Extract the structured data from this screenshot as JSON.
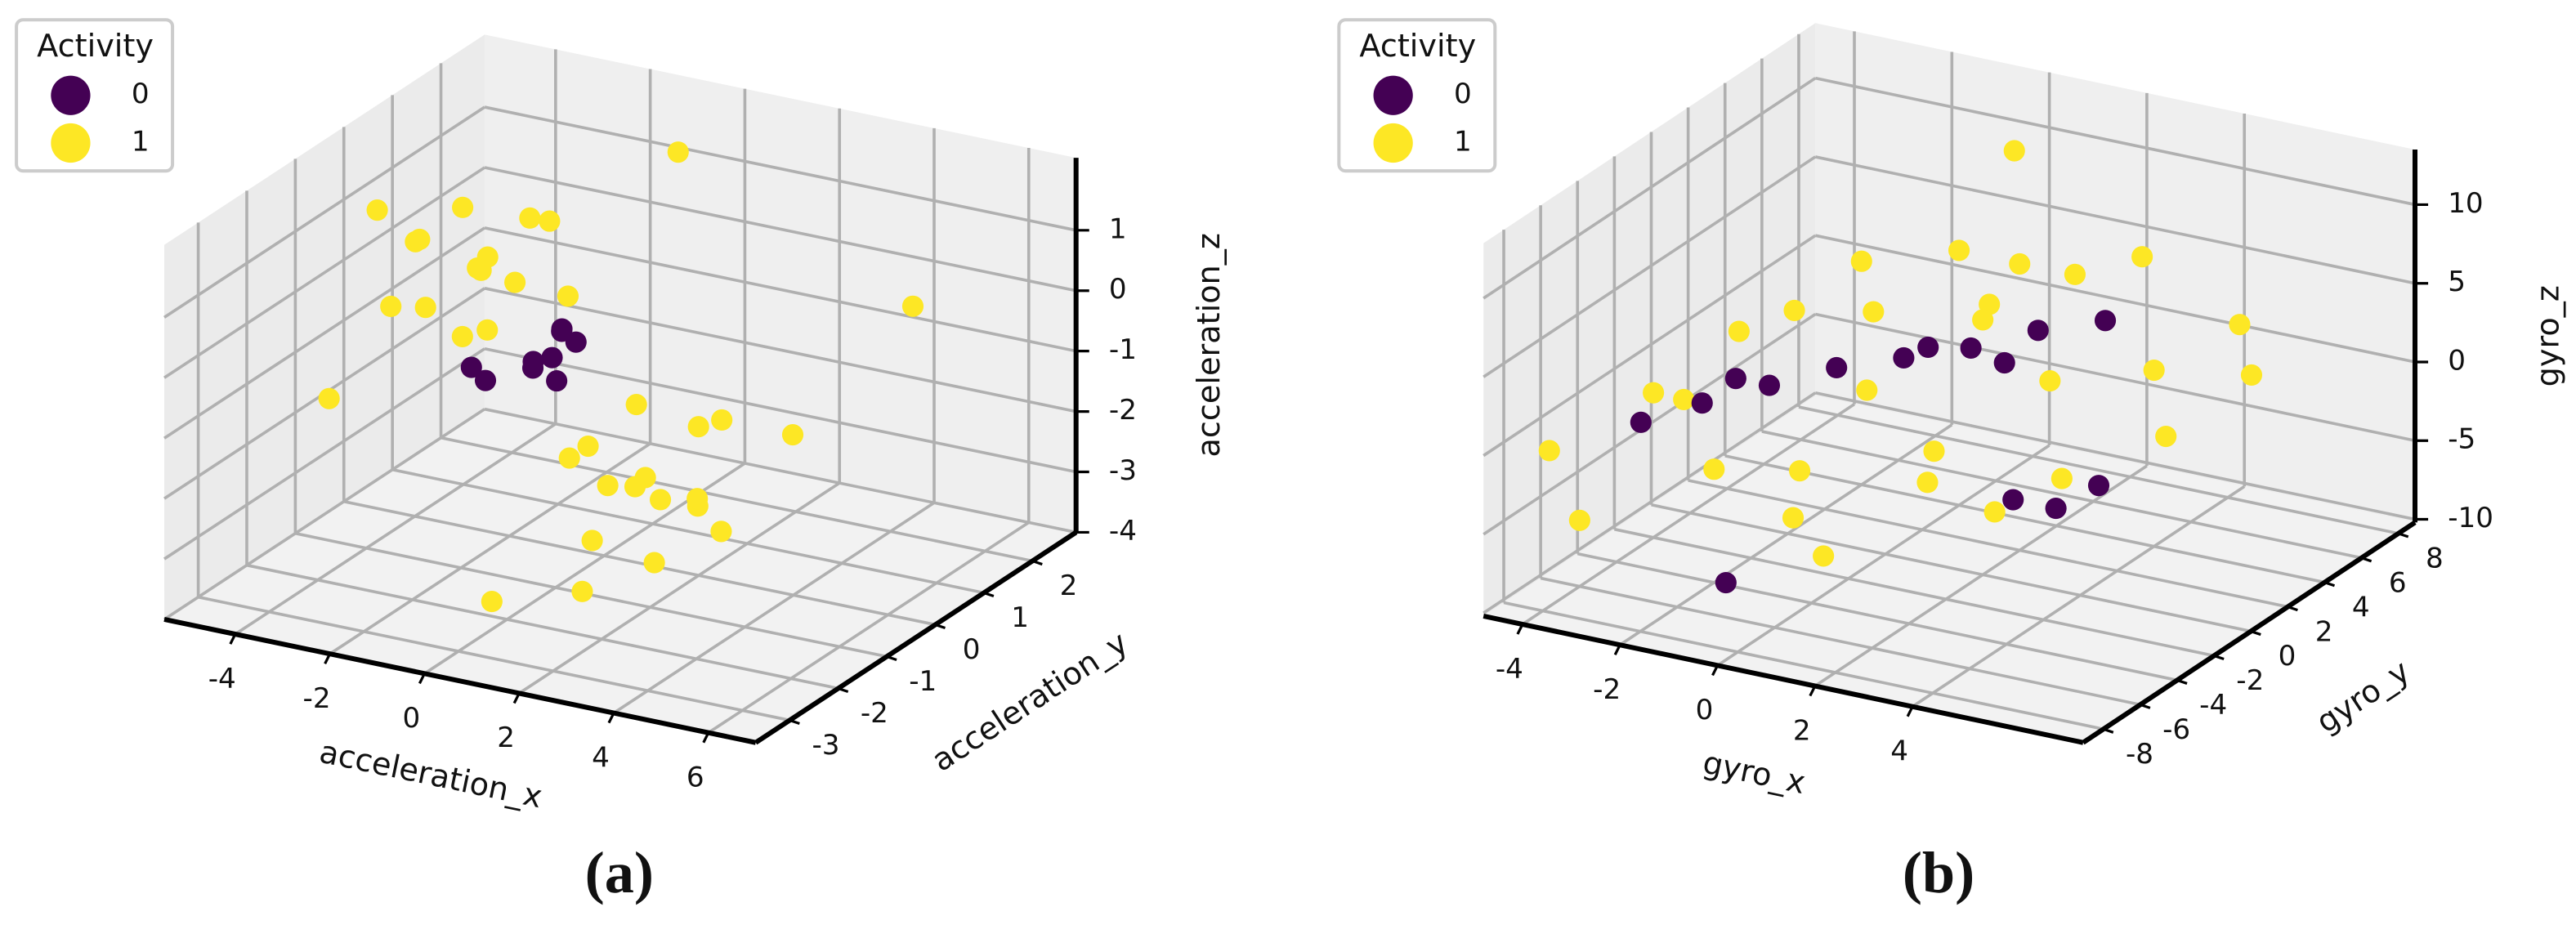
{
  "chart_data": [
    {
      "type": "scatter3d",
      "caption": "(a)",
      "xlabel": "acceleration_x",
      "ylabel": "acceleration_y",
      "zlabel": "acceleration_z",
      "xlim": [
        -5.5,
        7
      ],
      "ylim": [
        -3.7,
        2.9
      ],
      "zlim": [
        -4,
        2.2
      ],
      "xticks": [
        -4,
        -2,
        0,
        2,
        4,
        6
      ],
      "yticks": [
        -3,
        -2,
        -1,
        0,
        1,
        2
      ],
      "zticks": [
        -4,
        -3,
        -2,
        -1,
        0,
        1
      ],
      "grid": true,
      "legend": {
        "title": "Activity",
        "position": "upper left"
      },
      "series": [
        {
          "name": "0",
          "color": "#440154",
          "x": [
            -1.1,
            -0.8,
            -1.3,
            -0.9,
            -1.2,
            -1.6,
            -2.2,
            -2.6,
            -1.0
          ],
          "y": [
            0,
            0.2,
            -0.2,
            -0.1,
            0.3,
            0.1,
            -0.3,
            -0.2,
            0.1
          ],
          "z": [
            -0.9,
            -0.7,
            -1.0,
            -1.2,
            -0.6,
            -1.1,
            -1.3,
            -1.2,
            -0.5
          ]
        },
        {
          "name": "1",
          "color": "#fde725",
          "x": [
            -3.6,
            -4.5,
            -2.8,
            -3.2,
            -4.0,
            -2.5,
            -3.9,
            -3.0,
            -4.8,
            -2.2,
            -3.4,
            -4.2,
            -2.6,
            -3.7,
            -5.0,
            2.0,
            1.2,
            2.8,
            1.6,
            2.5,
            3.2,
            1.0,
            2.2,
            1.8,
            3.0,
            0.6,
            2.6,
            1.4,
            3.5,
            2.0,
            4.5,
            5.5,
            -5.3,
            0.5,
            -1.0
          ],
          "y": [
            0.9,
            0.5,
            1.2,
            0.2,
            1.5,
            0.6,
            0.0,
            1.8,
            1.0,
            1.4,
            0.4,
            -0.3,
            0.0,
            1.2,
            0.2,
            -1.1,
            -1.5,
            -0.8,
            -0.4,
            -1.8,
            -1.2,
            -0.9,
            -0.2,
            -2.0,
            -0.5,
            -1.3,
            -1.5,
            -0.7,
            -1.0,
            -2.4,
            -0.5,
            1.0,
            -0.5,
            -2.8,
            2.5
          ],
          "z": [
            -0.3,
            0.2,
            0.5,
            -1.0,
            -0.5,
            -0.2,
            0.6,
            0.1,
            -1.2,
            -0.8,
            1.0,
            -0.4,
            0.3,
            -1.5,
            0.8,
            -1.8,
            -1.2,
            -2.3,
            -2.6,
            -1.5,
            -1.9,
            -2.2,
            -1.4,
            -2.4,
            -1.0,
            -1.6,
            -2.9,
            -0.9,
            -2.5,
            -3.0,
            -1.0,
            0.5,
            -2.0,
            -3.2,
            1.2
          ]
        }
      ]
    },
    {
      "type": "scatter3d",
      "caption": "(b)",
      "xlabel": "gyro_x",
      "ylabel": "gyro_y",
      "zlabel": "gyro_z",
      "xlim": [
        -4.8,
        7.5
      ],
      "ylim": [
        -9.1,
        8.9
      ],
      "zlim": [
        -10.2,
        13.5
      ],
      "xticks": [
        -4,
        -2,
        0,
        2,
        4
      ],
      "yticks": [
        -8,
        -6,
        -4,
        -2,
        0,
        2,
        4,
        6,
        8
      ],
      "zticks": [
        -10,
        -5,
        0,
        5,
        10
      ],
      "grid": true,
      "legend": {
        "title": "Activity",
        "position": "upper left"
      },
      "series": [
        {
          "name": "0",
          "color": "#440154",
          "x": [
            -3,
            -2,
            -1,
            0,
            1,
            2,
            3,
            -2.5,
            1.5,
            0.5,
            3,
            3.5,
            4,
            -3.5,
            -1
          ],
          "y": [
            -2,
            -1,
            0,
            1,
            2,
            3,
            4,
            -1.5,
            2.5,
            1,
            -1,
            0,
            1,
            -4,
            -6
          ],
          "z": [
            -1,
            0,
            1,
            1.5,
            2,
            3,
            3.5,
            0.5,
            1,
            2.5,
            -4,
            -5,
            -4,
            -1,
            -8
          ]
        },
        {
          "name": "1",
          "color": "#fde725",
          "x": [
            -4,
            -3,
            -2,
            -1,
            0,
            1,
            2,
            3,
            4,
            5,
            -2,
            0,
            1,
            2,
            3,
            -3,
            4,
            -1,
            0,
            2,
            -4,
            5,
            1,
            -3,
            3,
            6,
            -5,
            0,
            2
          ],
          "y": [
            -2,
            0,
            -4,
            2,
            -1,
            3,
            -3,
            1,
            4,
            2,
            4,
            -5,
            0,
            5,
            -2,
            -3,
            -1,
            -2,
            4,
            2,
            -6,
            6,
            -6,
            3,
            6,
            4,
            -5,
            7,
            0
          ],
          "z": [
            -1,
            2,
            -3,
            3,
            1,
            4,
            -2,
            2,
            1,
            -1,
            4,
            -4,
            -3,
            5,
            -4,
            0,
            -2,
            -4,
            6,
            8,
            -6,
            3,
            -5,
            1,
            6,
            2,
            -3,
            10,
            6
          ]
        }
      ]
    }
  ]
}
